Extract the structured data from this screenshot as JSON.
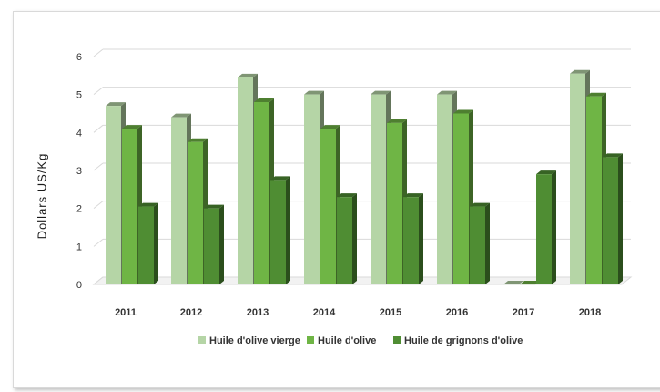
{
  "chart_data": {
    "type": "bar",
    "title": "",
    "xlabel": "",
    "ylabel": "Dollars US/Kg",
    "ylim": [
      0,
      6
    ],
    "yticks": [
      0,
      1,
      2,
      3,
      4,
      5,
      6
    ],
    "grid": true,
    "legend_position": "bottom",
    "categories": [
      "2011",
      "2012",
      "2013",
      "2014",
      "2015",
      "2016",
      "2017",
      "2018"
    ],
    "series": [
      {
        "name": "Huile d'olive vierge",
        "color": "#b5d5a6",
        "values": [
          4.7,
          4.4,
          5.45,
          5.0,
          5.0,
          5.0,
          0.0,
          5.55
        ]
      },
      {
        "name": "Huile d'olive",
        "color": "#6fb545",
        "values": [
          4.1,
          3.75,
          4.8,
          4.1,
          4.25,
          4.5,
          0.0,
          4.95
        ]
      },
      {
        "name": "Huile de grignons d'olive",
        "color": "#4f8d33",
        "values": [
          2.05,
          2.0,
          2.75,
          2.3,
          2.3,
          2.05,
          2.9,
          3.35
        ]
      }
    ]
  }
}
